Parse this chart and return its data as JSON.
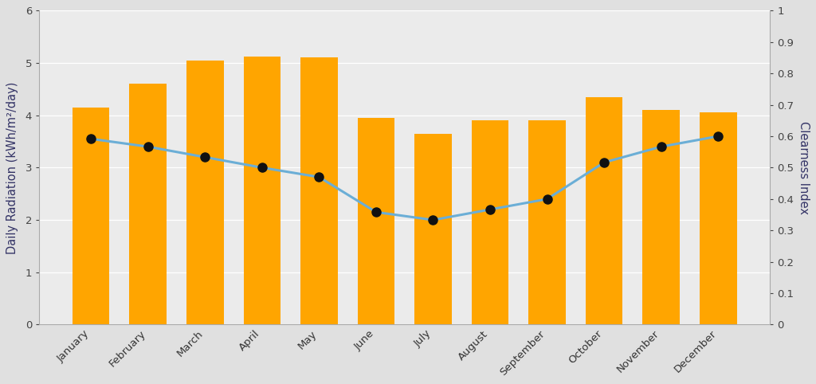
{
  "months": [
    "January",
    "February",
    "March",
    "April",
    "May",
    "June",
    "July",
    "August",
    "September",
    "October",
    "November",
    "December"
  ],
  "bar_values": [
    4.15,
    4.6,
    5.05,
    5.12,
    5.1,
    3.95,
    3.65,
    3.9,
    3.9,
    4.35,
    4.1,
    4.05
  ],
  "line_values": [
    3.55,
    3.4,
    3.2,
    3.0,
    2.82,
    2.15,
    2.0,
    2.2,
    2.4,
    3.1,
    3.4,
    3.6
  ],
  "bar_color": "#FFA500",
  "line_color": "#6BAED6",
  "marker_color": "#111111",
  "bar_ylim": [
    0,
    6
  ],
  "bar_yticks": [
    0,
    1,
    2,
    3,
    4,
    5,
    6
  ],
  "line_ylim_display": [
    0,
    1
  ],
  "line_yticks_display": [
    0,
    0.1,
    0.2,
    0.3,
    0.4,
    0.5,
    0.6,
    0.7,
    0.8,
    0.9,
    1.0
  ],
  "ylabel_left": "Daily Radiation (kWh/m²/day)",
  "ylabel_right": "Clearness Index",
  "background_color": "#e0e0e0",
  "plot_bg_color": "#ebebeb"
}
